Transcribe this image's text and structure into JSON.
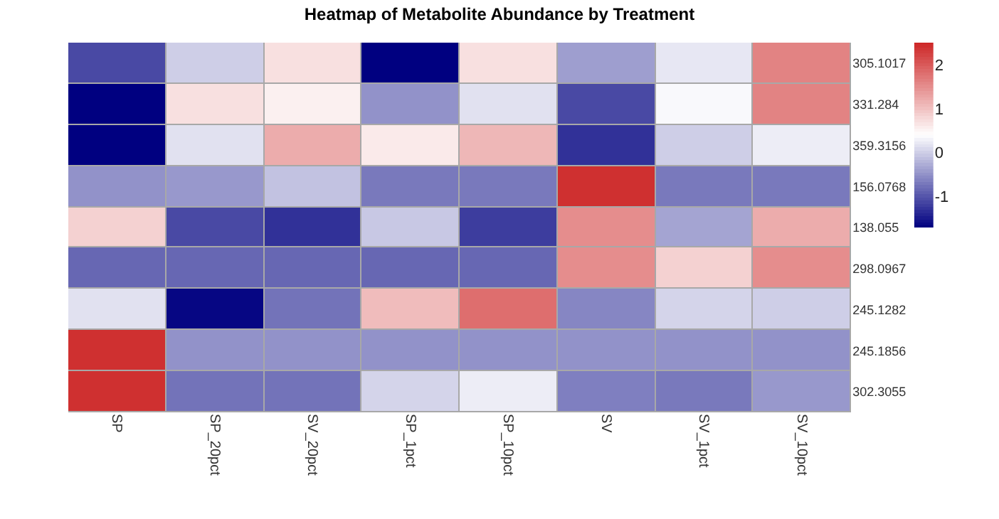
{
  "chart_data": {
    "type": "heatmap",
    "title": "Heatmap of Metabolite Abundance by Treatment",
    "categories": [
      "SP",
      "SP_20pct",
      "SV_20pct",
      "SP_1pct",
      "SP_10pct",
      "SV",
      "SV_1pct",
      "SV_10pct"
    ],
    "y_categories": [
      "305.1017",
      "331.284",
      "359.3156",
      "156.0768",
      "138.055",
      "298.0967",
      "245.1282",
      "245.1856",
      "302.3055"
    ],
    "cells": [
      [
        -1.1,
        0.0,
        0.7,
        -1.7,
        0.7,
        -0.4,
        0.2,
        1.6
      ],
      [
        -1.7,
        0.7,
        0.55,
        -0.5,
        0.15,
        -1.1,
        0.35,
        1.6
      ],
      [
        -1.7,
        0.15,
        1.2,
        0.6,
        1.1,
        -1.3,
        0.0,
        0.25
      ],
      [
        -0.5,
        -0.45,
        -0.1,
        -0.7,
        -0.7,
        2.4,
        -0.7,
        -0.7
      ],
      [
        0.85,
        -1.1,
        -1.3,
        -0.05,
        -1.2,
        1.5,
        -0.35,
        1.2
      ],
      [
        -0.85,
        -0.85,
        -0.85,
        -0.85,
        -0.85,
        1.5,
        0.85,
        1.5
      ],
      [
        0.15,
        -1.65,
        -0.75,
        1.05,
        1.8,
        -0.6,
        0.05,
        0.0
      ],
      [
        2.4,
        -0.5,
        -0.5,
        -0.5,
        -0.5,
        -0.5,
        -0.5,
        -0.5
      ],
      [
        2.4,
        -0.75,
        -0.75,
        0.05,
        0.25,
        -0.65,
        -0.7,
        -0.45
      ]
    ],
    "clim": [
      -1.7,
      2.5
    ],
    "cticks": [
      -1,
      0,
      1,
      2
    ]
  }
}
